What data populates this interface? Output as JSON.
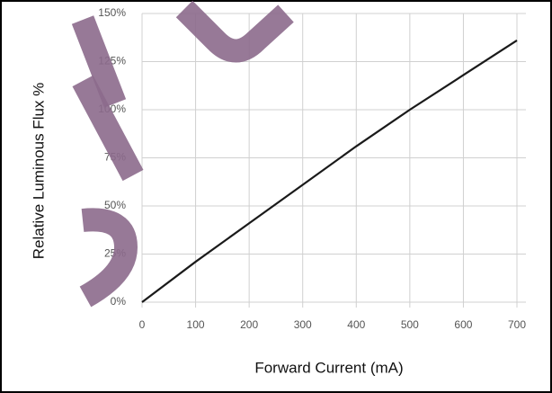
{
  "chart_data": {
    "type": "line",
    "xlabel": "Forward Current (mA)",
    "ylabel": "Relative Luminous Flux %",
    "x": [
      0,
      100,
      200,
      300,
      400,
      500,
      600,
      700
    ],
    "series": [
      {
        "color": "#1a1a1a",
        "values": [
          0,
          21,
          41,
          61,
          81,
          100,
          118,
          136
        ]
      }
    ],
    "xlim": [
      0,
      700
    ],
    "xticks": [
      0,
      100,
      200,
      300,
      400,
      500,
      600,
      700
    ],
    "ylim": [
      0,
      150
    ],
    "yticks": [
      {
        "value": 0,
        "label": "0%"
      },
      {
        "value": 25,
        "label": "25%"
      },
      {
        "value": 50,
        "label": "50%"
      },
      {
        "value": 75,
        "label": "75%"
      },
      {
        "value": 100,
        "label": "100%"
      },
      {
        "value": 125,
        "label": "125%"
      },
      {
        "value": 150,
        "label": "150%"
      }
    ],
    "grid": true
  }
}
